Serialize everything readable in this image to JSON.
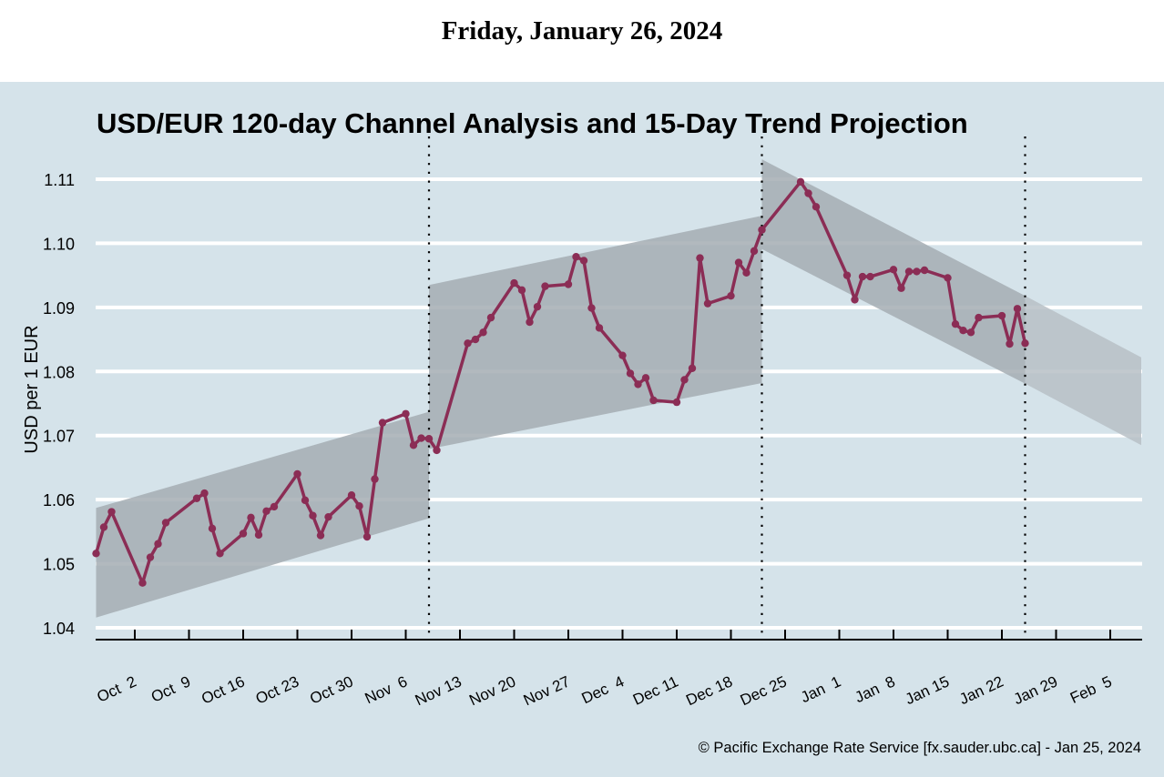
{
  "header": {
    "date": "Friday, January 26, 2024"
  },
  "footer": {
    "credit": "© Pacific Exchange Rate Service [fx.sauder.ubc.ca] - Jan 25, 2024"
  },
  "colors": {
    "background": "#d5e3ea",
    "channel": "#a5adb3",
    "projection": "#b7bfc5",
    "line": "#8b2d55",
    "grid": "#ffffff",
    "axis": "#000000"
  },
  "chart_data": {
    "type": "line",
    "title": "USD/EUR 120-day Channel Analysis and 15-Day Trend Projection",
    "xlabel": "",
    "ylabel": "USD per 1 EUR",
    "ylim": [
      1.038,
      1.113
    ],
    "xlim": [
      "2023-09-27",
      "2024-02-09"
    ],
    "grid": true,
    "y_ticks": [
      1.04,
      1.05,
      1.06,
      1.07,
      1.08,
      1.09,
      1.1,
      1.11
    ],
    "y_tick_labels": [
      "1.04",
      "1.05",
      "1.06",
      "1.07",
      "1.08",
      "1.09",
      "1.10",
      "1.11"
    ],
    "x_ticks": [
      "2023-10-02",
      "2023-10-09",
      "2023-10-16",
      "2023-10-23",
      "2023-10-30",
      "2023-11-06",
      "2023-11-13",
      "2023-11-20",
      "2023-11-27",
      "2023-12-04",
      "2023-12-11",
      "2023-12-18",
      "2023-12-25",
      "2024-01-01",
      "2024-01-08",
      "2024-01-15",
      "2024-01-22",
      "2024-01-29",
      "2024-02-05"
    ],
    "x_tick_labels": [
      "Oct  2",
      "Oct  9",
      "Oct 16",
      "Oct 23",
      "Oct 30",
      "Nov  6",
      "Nov 13",
      "Nov 20",
      "Nov 27",
      "Dec  4",
      "Dec 11",
      "Dec 18",
      "Dec 25",
      "Jan  1",
      "Jan  8",
      "Jan 15",
      "Jan 22",
      "Jan 29",
      "Feb  5"
    ],
    "dividers": [
      "2023-11-09",
      "2023-12-22",
      "2024-01-25"
    ],
    "channels": [
      {
        "name": "channel-1",
        "start": "2023-09-27",
        "end": "2023-11-09",
        "upper": [
          1.0587,
          1.0737
        ],
        "lower": [
          1.0416,
          1.0571
        ],
        "kind": "history"
      },
      {
        "name": "channel-2",
        "start": "2023-11-09",
        "end": "2023-12-22",
        "upper": [
          1.0935,
          1.1043
        ],
        "lower": [
          1.0679,
          1.0782
        ],
        "kind": "history"
      },
      {
        "name": "channel-3",
        "start": "2023-12-22",
        "end": "2024-01-25",
        "upper": [
          1.1131,
          1.0918
        ],
        "lower": [
          1.0991,
          1.0781
        ],
        "kind": "history"
      },
      {
        "name": "projection",
        "start": "2024-01-25",
        "end": "2024-02-09",
        "upper": [
          1.0918,
          1.0822
        ],
        "lower": [
          1.0781,
          1.0685
        ],
        "kind": "projection"
      }
    ],
    "series": [
      {
        "name": "USD/EUR",
        "x": [
          "2023-09-27",
          "2023-09-28",
          "2023-09-29",
          "2023-10-03",
          "2023-10-04",
          "2023-10-05",
          "2023-10-06",
          "2023-10-10",
          "2023-10-11",
          "2023-10-12",
          "2023-10-13",
          "2023-10-16",
          "2023-10-17",
          "2023-10-18",
          "2023-10-19",
          "2023-10-20",
          "2023-10-23",
          "2023-10-24",
          "2023-10-25",
          "2023-10-26",
          "2023-10-27",
          "2023-10-30",
          "2023-10-31",
          "2023-11-01",
          "2023-11-02",
          "2023-11-03",
          "2023-11-06",
          "2023-11-07",
          "2023-11-08",
          "2023-11-09",
          "2023-11-10",
          "2023-11-14",
          "2023-11-15",
          "2023-11-16",
          "2023-11-17",
          "2023-11-20",
          "2023-11-21",
          "2023-11-22",
          "2023-11-23",
          "2023-11-24",
          "2023-11-27",
          "2023-11-28",
          "2023-11-29",
          "2023-11-30",
          "2023-12-01",
          "2023-12-04",
          "2023-12-05",
          "2023-12-06",
          "2023-12-07",
          "2023-12-08",
          "2023-12-11",
          "2023-12-12",
          "2023-12-13",
          "2023-12-14",
          "2023-12-15",
          "2023-12-18",
          "2023-12-19",
          "2023-12-20",
          "2023-12-21",
          "2023-12-22",
          "2023-12-27",
          "2023-12-28",
          "2023-12-29",
          "2024-01-02",
          "2024-01-03",
          "2024-01-04",
          "2024-01-05",
          "2024-01-08",
          "2024-01-09",
          "2024-01-10",
          "2024-01-11",
          "2024-01-12",
          "2024-01-15",
          "2024-01-16",
          "2024-01-17",
          "2024-01-18",
          "2024-01-19",
          "2024-01-22",
          "2024-01-23",
          "2024-01-24",
          "2024-01-25"
        ],
        "values": [
          1.0516,
          1.0557,
          1.0581,
          1.047,
          1.051,
          1.0531,
          1.0564,
          1.0602,
          1.061,
          1.0555,
          1.0516,
          1.0547,
          1.0572,
          1.0545,
          1.0582,
          1.0589,
          1.064,
          1.0599,
          1.0575,
          1.0544,
          1.0573,
          1.0607,
          1.059,
          1.0542,
          1.0632,
          1.072,
          1.0734,
          1.0685,
          1.0696,
          1.0695,
          1.0677,
          1.0844,
          1.085,
          1.0861,
          1.0884,
          1.0938,
          1.0927,
          1.0877,
          1.0901,
          1.0933,
          1.0936,
          1.0979,
          1.0973,
          1.0899,
          1.0868,
          1.0825,
          1.0797,
          1.078,
          1.079,
          1.0755,
          1.0752,
          1.0787,
          1.0805,
          1.0977,
          1.0906,
          1.0918,
          1.097,
          1.0954,
          1.0988,
          1.1021,
          1.1096,
          1.1078,
          1.1057,
          1.095,
          1.0912,
          1.0948,
          1.0948,
          1.0959,
          1.093,
          1.0956,
          1.0956,
          1.0958,
          1.0946,
          1.0874,
          1.0864,
          1.0861,
          1.0884,
          1.0887,
          1.0843,
          1.0898,
          1.0844
        ]
      }
    ]
  }
}
